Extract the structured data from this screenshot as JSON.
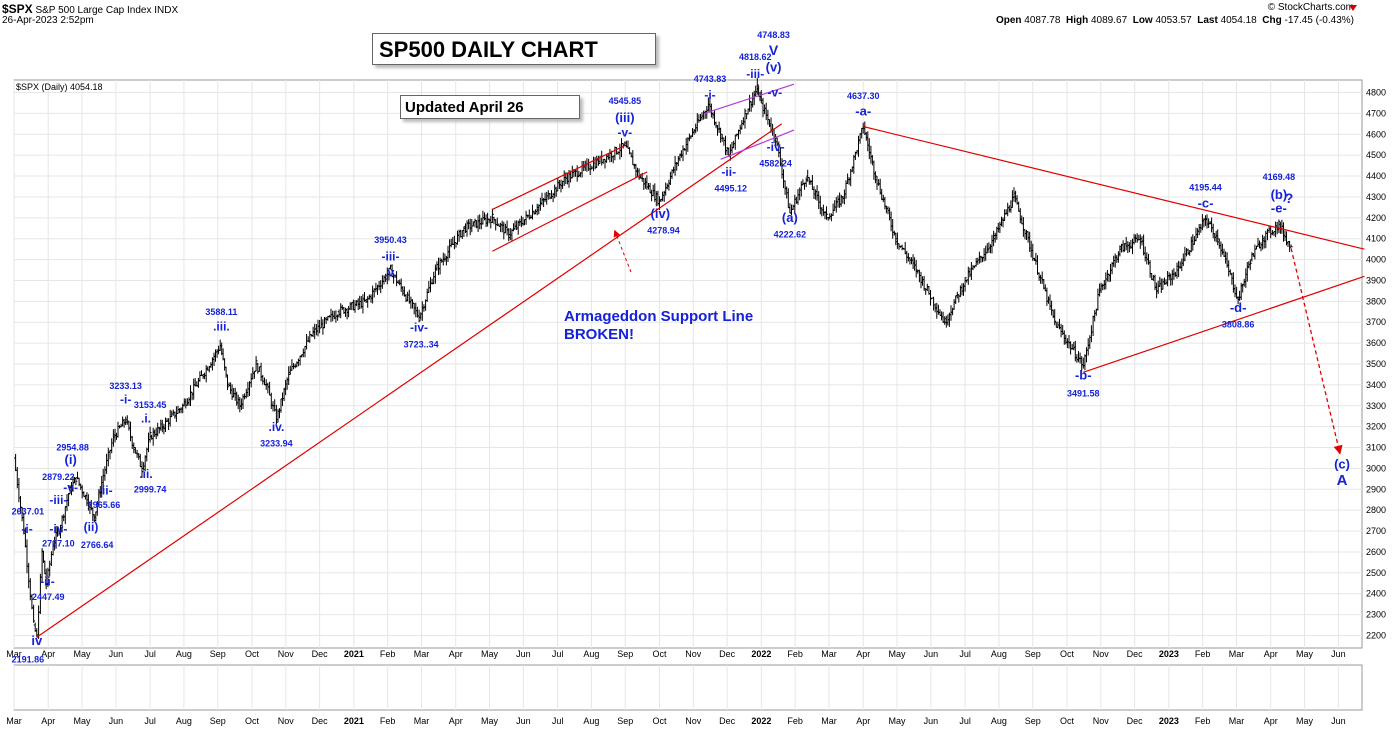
{
  "header": {
    "ticker": "$SPX",
    "name": "S&P 500 Large Cap Index",
    "exchange": "INDX",
    "datetime": "26-Apr-2023 2:52pm",
    "source": "© StockCharts.com",
    "open_label": "Open",
    "open": "4087.78",
    "high_label": "High",
    "high": "4089.67",
    "low_label": "Low",
    "low": "4053.57",
    "last_label": "Last",
    "last": "4054.18",
    "chg_label": "Chg",
    "chg": "-17.45 (-0.43%)",
    "down_color": "#d00000"
  },
  "legend": "$SPX (Daily) 4054.18",
  "title_box": "SP500 DAILY CHART",
  "updated_box": "Updated April 26",
  "note": {
    "line1": "Armageddon Support Line",
    "line2": "BROKEN!"
  },
  "chart_data": {
    "type": "ohlc",
    "title": "SP500 DAILY CHART",
    "y_axis": {
      "min": 2140,
      "max": 4860,
      "ticks": [
        2200,
        2300,
        2400,
        2500,
        2600,
        2700,
        2800,
        2900,
        3000,
        3100,
        3200,
        3300,
        3400,
        3500,
        3600,
        3700,
        3800,
        3900,
        4000,
        4100,
        4200,
        4300,
        4400,
        4500,
        4600,
        4700,
        4800
      ]
    },
    "x_axis": {
      "start": 2020.166,
      "end": 2023.474,
      "labels": [
        {
          "t": 2020.166,
          "text": "Mar",
          "bold": false
        },
        {
          "t": 2020.25,
          "text": "Apr",
          "bold": false
        },
        {
          "t": 2020.333,
          "text": "May",
          "bold": false
        },
        {
          "t": 2020.416,
          "text": "Jun",
          "bold": false
        },
        {
          "t": 2020.5,
          "text": "Jul",
          "bold": false
        },
        {
          "t": 2020.583,
          "text": "Aug",
          "bold": false
        },
        {
          "t": 2020.666,
          "text": "Sep",
          "bold": false
        },
        {
          "t": 2020.75,
          "text": "Oct",
          "bold": false
        },
        {
          "t": 2020.833,
          "text": "Nov",
          "bold": false
        },
        {
          "t": 2020.916,
          "text": "Dec",
          "bold": false
        },
        {
          "t": 2021.0,
          "text": "2021",
          "bold": true
        },
        {
          "t": 2021.083,
          "text": "Feb",
          "bold": false
        },
        {
          "t": 2021.166,
          "text": "Mar",
          "bold": false
        },
        {
          "t": 2021.25,
          "text": "Apr",
          "bold": false
        },
        {
          "t": 2021.333,
          "text": "May",
          "bold": false
        },
        {
          "t": 2021.416,
          "text": "Jun",
          "bold": false
        },
        {
          "t": 2021.5,
          "text": "Jul",
          "bold": false
        },
        {
          "t": 2021.583,
          "text": "Aug",
          "bold": false
        },
        {
          "t": 2021.666,
          "text": "Sep",
          "bold": false
        },
        {
          "t": 2021.75,
          "text": "Oct",
          "bold": false
        },
        {
          "t": 2021.833,
          "text": "Nov",
          "bold": false
        },
        {
          "t": 2021.916,
          "text": "Dec",
          "bold": false
        },
        {
          "t": 2022.0,
          "text": "2022",
          "bold": true
        },
        {
          "t": 2022.083,
          "text": "Feb",
          "bold": false
        },
        {
          "t": 2022.166,
          "text": "Mar",
          "bold": false
        },
        {
          "t": 2022.25,
          "text": "Apr",
          "bold": false
        },
        {
          "t": 2022.333,
          "text": "May",
          "bold": false
        },
        {
          "t": 2022.416,
          "text": "Jun",
          "bold": false
        },
        {
          "t": 2022.5,
          "text": "Jul",
          "bold": false
        },
        {
          "t": 2022.583,
          "text": "Aug",
          "bold": false
        },
        {
          "t": 2022.666,
          "text": "Sep",
          "bold": false
        },
        {
          "t": 2022.75,
          "text": "Oct",
          "bold": false
        },
        {
          "t": 2022.833,
          "text": "Nov",
          "bold": false
        },
        {
          "t": 2022.916,
          "text": "Dec",
          "bold": false
        },
        {
          "t": 2023.0,
          "text": "2023",
          "bold": true
        },
        {
          "t": 2023.083,
          "text": "Feb",
          "bold": false
        },
        {
          "t": 2023.166,
          "text": "Mar",
          "bold": false
        },
        {
          "t": 2023.25,
          "text": "Apr",
          "bold": false
        },
        {
          "t": 2023.333,
          "text": "May",
          "bold": false
        },
        {
          "t": 2023.416,
          "text": "Jun",
          "bold": false
        }
      ]
    },
    "price_path": [
      [
        2020.166,
        3050
      ],
      [
        2020.19,
        2700
      ],
      [
        2020.214,
        2250
      ],
      [
        2020.222,
        2191.86
      ],
      [
        2020.235,
        2600
      ],
      [
        2020.245,
        2447.49
      ],
      [
        2020.262,
        2637.01
      ],
      [
        2020.28,
        2727.1
      ],
      [
        2020.3,
        2879.22
      ],
      [
        2020.318,
        2954.88
      ],
      [
        2020.345,
        2850
      ],
      [
        2020.363,
        2766.64
      ],
      [
        2020.385,
        2965.66
      ],
      [
        2020.41,
        3150
      ],
      [
        2020.44,
        3233.13
      ],
      [
        2020.46,
        3100
      ],
      [
        2020.48,
        2999.74
      ],
      [
        2020.5,
        3153.45
      ],
      [
        2020.53,
        3200
      ],
      [
        2020.58,
        3300
      ],
      [
        2020.63,
        3450
      ],
      [
        2020.672,
        3588.11
      ],
      [
        2020.69,
        3400
      ],
      [
        2020.72,
        3300
      ],
      [
        2020.76,
        3500
      ],
      [
        2020.785,
        3400
      ],
      [
        2020.81,
        3233.94
      ],
      [
        2020.84,
        3450
      ],
      [
        2020.9,
        3650
      ],
      [
        2020.96,
        3750
      ],
      [
        2021.03,
        3800
      ],
      [
        2021.09,
        3950.43
      ],
      [
        2021.12,
        3850
      ],
      [
        2021.16,
        3723.34
      ],
      [
        2021.2,
        3950
      ],
      [
        2021.27,
        4150
      ],
      [
        2021.34,
        4200
      ],
      [
        2021.38,
        4120
      ],
      [
        2021.45,
        4250
      ],
      [
        2021.52,
        4390
      ],
      [
        2021.6,
        4470
      ],
      [
        2021.665,
        4545.85
      ],
      [
        2021.7,
        4400
      ],
      [
        2021.75,
        4278.94
      ],
      [
        2021.8,
        4500
      ],
      [
        2021.87,
        4743.83
      ],
      [
        2021.9,
        4600
      ],
      [
        2021.92,
        4495.12
      ],
      [
        2021.96,
        4700
      ],
      [
        2021.99,
        4818.62
      ],
      [
        2022.0,
        4748.83
      ],
      [
        2022.02,
        4650
      ],
      [
        2022.035,
        4582.24
      ],
      [
        2022.07,
        4222.62
      ],
      [
        2022.11,
        4400
      ],
      [
        2022.16,
        4200
      ],
      [
        2022.2,
        4300
      ],
      [
        2022.25,
        4637.3
      ],
      [
        2022.28,
        4400
      ],
      [
        2022.33,
        4100
      ],
      [
        2022.38,
        3950
      ],
      [
        2022.45,
        3700
      ],
      [
        2022.5,
        3900
      ],
      [
        2022.57,
        4100
      ],
      [
        2022.62,
        4300
      ],
      [
        2022.67,
        4000
      ],
      [
        2022.72,
        3700
      ],
      [
        2022.79,
        3491.58
      ],
      [
        2022.83,
        3850
      ],
      [
        2022.88,
        4050
      ],
      [
        2022.93,
        4100
      ],
      [
        2022.97,
        3850
      ],
      [
        2023.02,
        3950
      ],
      [
        2023.09,
        4195.44
      ],
      [
        2023.12,
        4100
      ],
      [
        2023.17,
        3808.86
      ],
      [
        2023.2,
        4000
      ],
      [
        2023.23,
        4100
      ],
      [
        2023.27,
        4169.48
      ],
      [
        2023.3,
        4054.18
      ]
    ],
    "trend_lines": [
      {
        "name": "armageddon-support-line",
        "color": "#e00000",
        "points": [
          [
            2020.222,
            2191.86
          ],
          [
            2022.05,
            4650
          ]
        ]
      },
      {
        "name": "upper-channel-line",
        "color": "#e00000",
        "points": [
          [
            2021.34,
            4240
          ],
          [
            2021.665,
            4545.85
          ]
        ]
      },
      {
        "name": "lower-channel-line",
        "color": "#e00000",
        "points": [
          [
            2021.34,
            4040
          ],
          [
            2021.72,
            4420
          ]
        ]
      },
      {
        "name": "wedge-upper-line",
        "color": "#e00000",
        "points": [
          [
            2022.25,
            4637.3
          ],
          [
            2023.48,
            4050
          ]
        ]
      },
      {
        "name": "wedge-lower-line",
        "color": "#e00000",
        "points": [
          [
            2022.79,
            3460
          ],
          [
            2023.48,
            3920
          ]
        ]
      },
      {
        "name": "top-channel-upper-line",
        "color": "#b03bd8",
        "points": [
          [
            2021.86,
            4700
          ],
          [
            2022.08,
            4840
          ]
        ]
      },
      {
        "name": "top-channel-lower-line",
        "color": "#b03bd8",
        "points": [
          [
            2021.9,
            4480
          ],
          [
            2022.08,
            4620
          ]
        ]
      }
    ],
    "projection": {
      "color": "#e00000",
      "points": [
        [
          2023.3,
          4054.18
        ],
        [
          2023.42,
          3070
        ]
      ]
    },
    "pointer": {
      "color": "#e00000",
      "points": [
        [
          2021.68,
          3940
        ],
        [
          2021.64,
          4140
        ]
      ]
    },
    "wave_labels": [
      {
        "t": 2020.222,
        "p": 2155,
        "text": "iv",
        "size": 13
      },
      {
        "t": 2020.2,
        "p": 2070,
        "text": "2191.86",
        "size": 9
      },
      {
        "t": 2020.198,
        "p": 2690,
        "text": "-i-",
        "size": 12
      },
      {
        "t": 2020.2,
        "p": 2780,
        "text": "2637.01",
        "size": 9
      },
      {
        "t": 2020.248,
        "p": 2440,
        "text": "-ii-",
        "size": 12
      },
      {
        "t": 2020.25,
        "p": 2370,
        "text": "2447.49",
        "size": 9
      },
      {
        "t": 2020.275,
        "p": 2690,
        "text": "-iv-",
        "size": 12
      },
      {
        "t": 2020.275,
        "p": 2625,
        "text": "2727.10",
        "size": 9
      },
      {
        "t": 2020.275,
        "p": 2830,
        "text": "-iii-",
        "size": 12
      },
      {
        "t": 2020.275,
        "p": 2945,
        "text": "2879.22",
        "size": 9
      },
      {
        "t": 2020.305,
        "p": 2890,
        "text": "-v-",
        "size": 12
      },
      {
        "t": 2020.305,
        "p": 3020,
        "text": "(i)",
        "size": 13
      },
      {
        "t": 2020.31,
        "p": 3085,
        "text": "2954.88",
        "size": 9
      },
      {
        "t": 2020.355,
        "p": 2700,
        "text": "(ii)",
        "size": 12
      },
      {
        "t": 2020.37,
        "p": 2620,
        "text": "2766.64",
        "size": 9
      },
      {
        "t": 2020.39,
        "p": 2875,
        "text": "-ii-",
        "size": 12
      },
      {
        "t": 2020.387,
        "p": 2810,
        "text": "2965.66",
        "size": 9
      },
      {
        "t": 2020.44,
        "p": 3310,
        "text": "-i-",
        "size": 12
      },
      {
        "t": 2020.44,
        "p": 3380,
        "text": "3233.13",
        "size": 9
      },
      {
        "t": 2020.49,
        "p": 3220,
        "text": ".i.",
        "size": 12
      },
      {
        "t": 2020.5,
        "p": 3290,
        "text": "3153.45",
        "size": 9
      },
      {
        "t": 2020.49,
        "p": 2955,
        "text": ".ii.",
        "size": 12
      },
      {
        "t": 2020.5,
        "p": 2885,
        "text": "2999.74",
        "size": 9
      },
      {
        "t": 2020.675,
        "p": 3660,
        "text": ".iii.",
        "size": 12
      },
      {
        "t": 2020.675,
        "p": 3735,
        "text": "3588.11",
        "size": 9
      },
      {
        "t": 2020.81,
        "p": 3180,
        "text": ".iv.",
        "size": 12
      },
      {
        "t": 2020.81,
        "p": 3105,
        "text": "3233.94",
        "size": 9
      },
      {
        "t": 2021.09,
        "p": 3920,
        "text": ".v.",
        "size": 12
      },
      {
        "t": 2021.09,
        "p": 3995,
        "text": "-iii-",
        "size": 12
      },
      {
        "t": 2021.09,
        "p": 4080,
        "text": "3950.43",
        "size": 9
      },
      {
        "t": 2021.16,
        "p": 3655,
        "text": "-iv-",
        "size": 12
      },
      {
        "t": 2021.165,
        "p": 3580,
        "text": "3723..34",
        "size": 9
      },
      {
        "t": 2021.665,
        "p": 4590,
        "text": "-v-",
        "size": 12
      },
      {
        "t": 2021.665,
        "p": 4660,
        "text": "(iii)",
        "size": 13
      },
      {
        "t": 2021.665,
        "p": 4745,
        "text": "4545.85",
        "size": 9
      },
      {
        "t": 2021.752,
        "p": 4200,
        "text": "(iv)",
        "size": 13
      },
      {
        "t": 2021.76,
        "p": 4125,
        "text": "4278.94",
        "size": 9
      },
      {
        "t": 2021.874,
        "p": 4770,
        "text": "-i-",
        "size": 12
      },
      {
        "t": 2021.874,
        "p": 4850,
        "text": "4743.83",
        "size": 9
      },
      {
        "t": 2021.92,
        "p": 4400,
        "text": "-ii-",
        "size": 12
      },
      {
        "t": 2021.925,
        "p": 4325,
        "text": "4495.12",
        "size": 9
      },
      {
        "t": 2021.985,
        "p": 4870,
        "text": "-iii-",
        "size": 12
      },
      {
        "t": 2021.985,
        "p": 4955,
        "text": "4818.62",
        "size": 9
      },
      {
        "t": 2022.033,
        "p": 4780,
        "text": "-v-",
        "size": 12
      },
      {
        "t": 2022.03,
        "p": 4900,
        "text": "(v)",
        "size": 13
      },
      {
        "t": 2022.03,
        "p": 4980,
        "text": "V",
        "size": 14
      },
      {
        "t": 2022.03,
        "p": 5060,
        "text": "4748.83",
        "size": 9
      },
      {
        "t": 2022.035,
        "p": 4520,
        "text": "-iv-",
        "size": 12
      },
      {
        "t": 2022.035,
        "p": 4445,
        "text": "4582.24",
        "size": 9
      },
      {
        "t": 2022.07,
        "p": 4180,
        "text": "(a)",
        "size": 13
      },
      {
        "t": 2022.07,
        "p": 4105,
        "text": "4222.62",
        "size": 9
      },
      {
        "t": 2022.25,
        "p": 4690,
        "text": "-a-",
        "size": 13
      },
      {
        "t": 2022.25,
        "p": 4770,
        "text": "4637.30",
        "size": 9
      },
      {
        "t": 2022.79,
        "p": 3425,
        "text": "-b-",
        "size": 13
      },
      {
        "t": 2022.79,
        "p": 3345,
        "text": "3491.58",
        "size": 9
      },
      {
        "t": 2023.09,
        "p": 4250,
        "text": "-c-",
        "size": 13
      },
      {
        "t": 2023.09,
        "p": 4330,
        "text": "4195.44",
        "size": 9
      },
      {
        "t": 2023.17,
        "p": 3750,
        "text": "-d-",
        "size": 13
      },
      {
        "t": 2023.17,
        "p": 3675,
        "text": "3808.86",
        "size": 9
      },
      {
        "t": 2023.27,
        "p": 4225,
        "text": "-e-",
        "size": 13
      },
      {
        "t": 2023.27,
        "p": 4290,
        "text": "(b)",
        "size": 13
      },
      {
        "t": 2023.295,
        "p": 4270,
        "text": "?",
        "size": 14
      },
      {
        "t": 2023.27,
        "p": 4380,
        "text": "4169.48",
        "size": 9
      },
      {
        "t": 2023.425,
        "p": 3000,
        "text": "(c)",
        "size": 13
      },
      {
        "t": 2023.425,
        "p": 2920,
        "text": "A",
        "size": 15
      }
    ]
  }
}
